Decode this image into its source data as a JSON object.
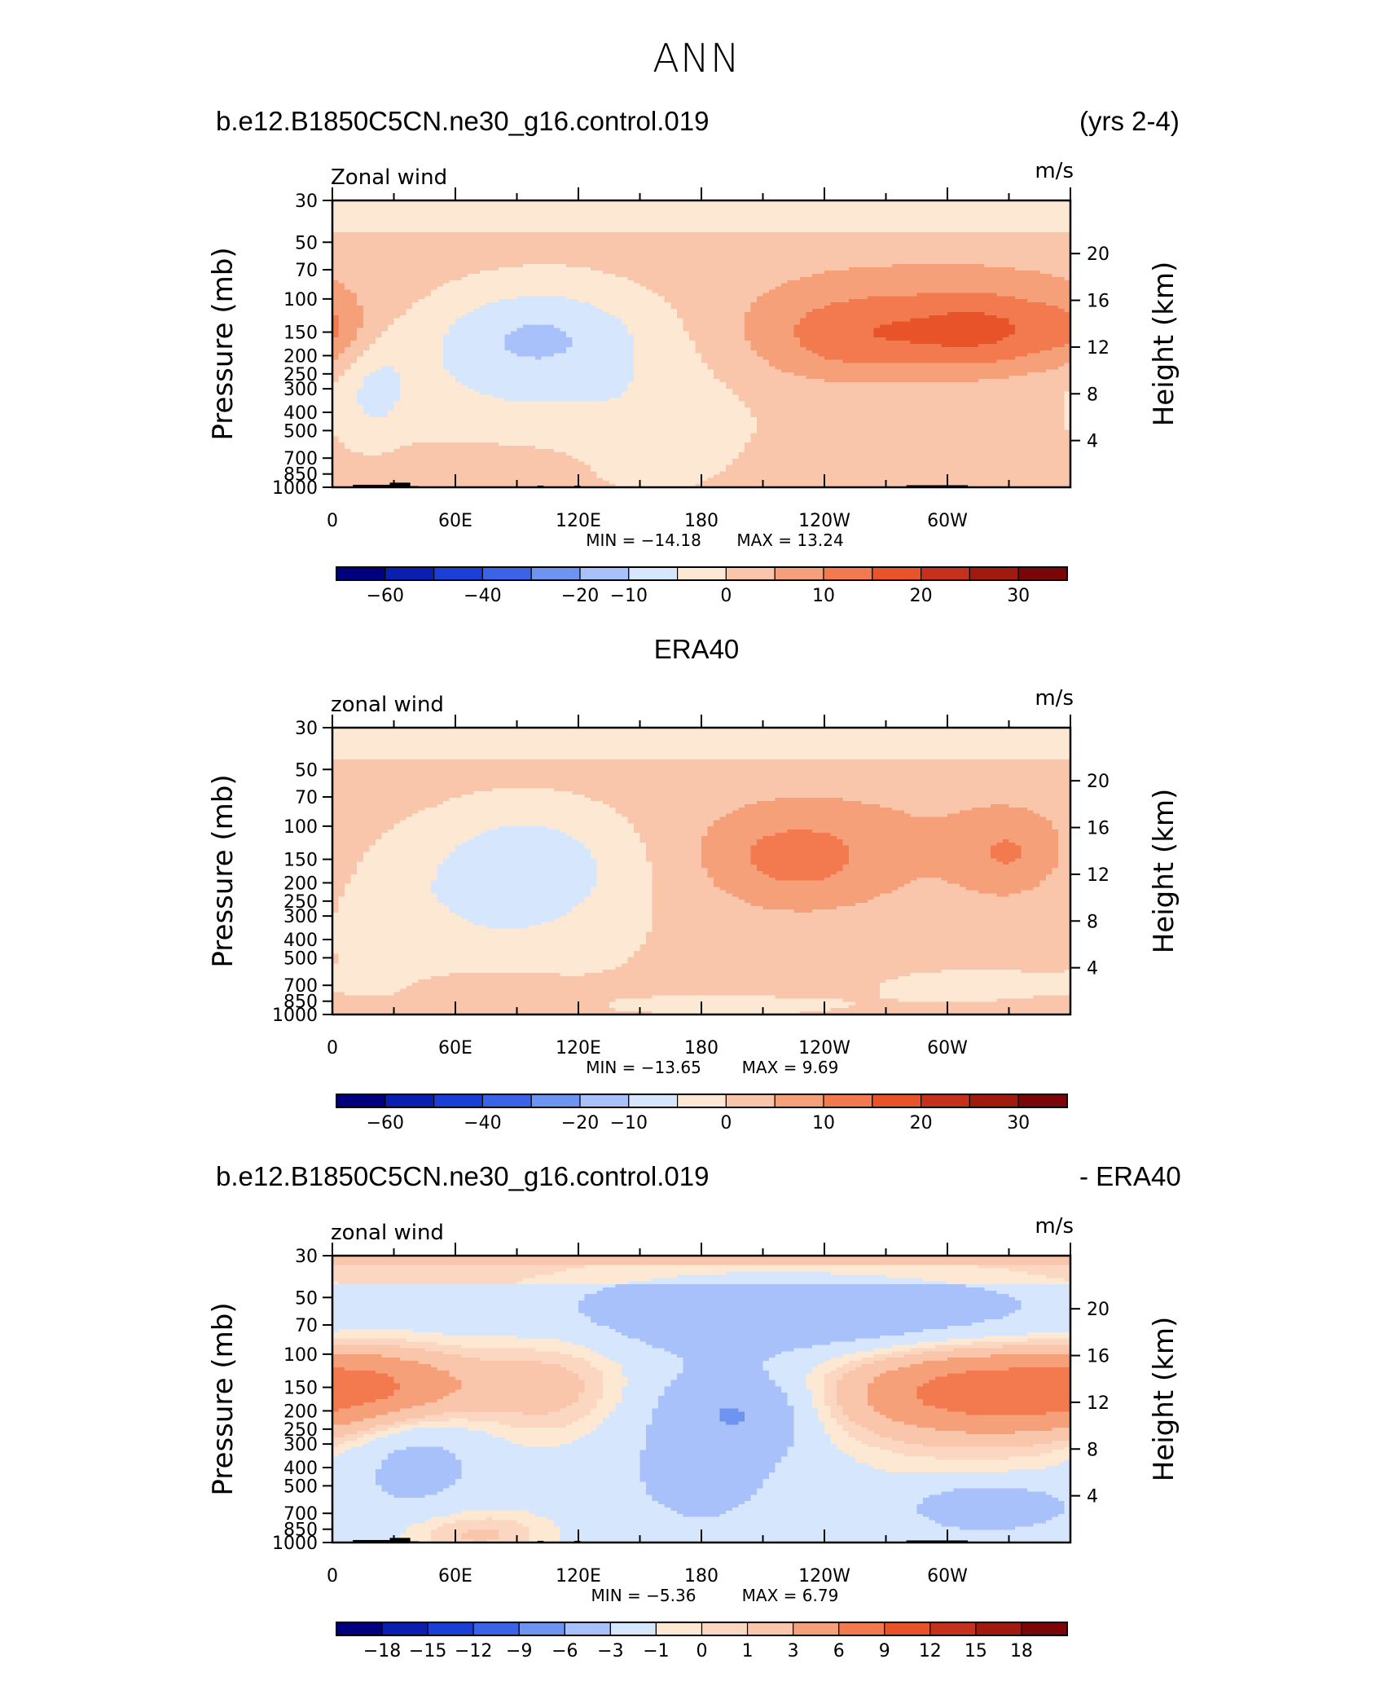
{
  "figure": {
    "title": "ANN"
  },
  "colors": {
    "abs_scale": [
      "#00007f",
      "#0a1fb0",
      "#1a3fd6",
      "#3a63e8",
      "#6e94f2",
      "#a8c1fa",
      "#d6e6fc",
      "#fde8d4",
      "#f9c6ab",
      "#f5a079",
      "#f27a4e",
      "#e8532a",
      "#c6311b",
      "#a01a10",
      "#7a0708"
    ],
    "diff_scale": [
      "#00007f",
      "#0a1fb0",
      "#1a3fd6",
      "#3a63e8",
      "#6e94f2",
      "#a8c1fa",
      "#d6e6fc",
      "#fde8d4",
      "#fbd7c1",
      "#f9c6ab",
      "#f5a079",
      "#f27a4e",
      "#e8532a",
      "#c6311b",
      "#a01a10",
      "#7a0708"
    ]
  },
  "axes": {
    "xtick_labels": [
      "0",
      "60E",
      "120E",
      "180",
      "120W",
      "60W"
    ],
    "ytick_labels": [
      "30",
      "50",
      "70",
      "100",
      "150",
      "200",
      "250",
      "300",
      "400",
      "500",
      "700",
      "850",
      "1000"
    ],
    "right_tick_labels": [
      "20",
      "16",
      "12",
      "8",
      "4"
    ],
    "ylabel": "Pressure (mb)",
    "right_label": "Height (km)"
  },
  "panels": [
    {
      "title_left": "b.e12.B1850C5CN.ne30_g16.control.019",
      "title_center": "",
      "title_right": "(yrs 2-4)",
      "subtitle_left": "Zonal wind",
      "subtitle_right": "m/s",
      "min_label": "MIN = −14.18",
      "max_label": "MAX = 13.24",
      "colorbar_labels": [
        "−60",
        "−40",
        "−20",
        "−10",
        "0",
        "10",
        "20",
        "30"
      ]
    },
    {
      "title_left": "",
      "title_center": "ERA40",
      "title_right": "",
      "subtitle_left": "zonal wind",
      "subtitle_right": "m/s",
      "min_label": "MIN = −13.65",
      "max_label": "MAX = 9.69",
      "colorbar_labels": [
        "−60",
        "−40",
        "−20",
        "−10",
        "0",
        "10",
        "20",
        "30"
      ]
    },
    {
      "title_left": "b.e12.B1850C5CN.ne30_g16.control.019",
      "title_center": "",
      "title_right": "- ERA40",
      "subtitle_left": "zonal wind",
      "subtitle_right": "m/s",
      "min_label": "MIN = −5.36",
      "max_label": "MAX = 6.79",
      "colorbar_labels": [
        "−18",
        "−15",
        "−12",
        "−9",
        "−6",
        "−3",
        "−1",
        "0",
        "1",
        "3",
        "6",
        "9",
        "12",
        "15",
        "18"
      ]
    }
  ],
  "chart_data": [
    {
      "type": "heatmap",
      "title": "b.e12.B1850C5CN.ne30_g16.control.019 (yrs 2-4)",
      "variable": "Zonal wind",
      "units": "m/s",
      "x_range": [
        0,
        360
      ],
      "y_range_mb": [
        1000,
        30
      ],
      "min": -14.18,
      "max": 13.24,
      "contour_levels": [
        -60,
        -50,
        -40,
        -30,
        -20,
        -15,
        -10,
        -5,
        0,
        5,
        10,
        15,
        20,
        25,
        30
      ],
      "features": [
        {
          "lon": 100,
          "p": 150,
          "value": -10
        },
        {
          "lon": 240,
          "p": 150,
          "value": 12
        },
        {
          "lon": 320,
          "p": 150,
          "value": 13
        },
        {
          "lon": 0,
          "p": 40,
          "value": -3
        }
      ]
    },
    {
      "type": "heatmap",
      "title": "ERA40",
      "variable": "zonal wind",
      "units": "m/s",
      "x_range": [
        0,
        360
      ],
      "y_range_mb": [
        1000,
        30
      ],
      "min": -13.65,
      "max": 9.69,
      "contour_levels": [
        -60,
        -50,
        -40,
        -30,
        -20,
        -15,
        -10,
        -5,
        0,
        5,
        10,
        15,
        20,
        25,
        30
      ],
      "features": [
        {
          "lon": 100,
          "p": 150,
          "value": -9
        },
        {
          "lon": 220,
          "p": 150,
          "value": 9
        },
        {
          "lon": 330,
          "p": 130,
          "value": 8
        },
        {
          "lon": 0,
          "p": 40,
          "value": -3
        }
      ]
    },
    {
      "type": "heatmap",
      "title": "b.e12.B1850C5CN.ne30_g16.control.019 - ERA40",
      "variable": "zonal wind",
      "units": "m/s",
      "x_range": [
        0,
        360
      ],
      "y_range_mb": [
        1000,
        30
      ],
      "min": -5.36,
      "max": 6.79,
      "contour_levels": [
        -21,
        -18,
        -15,
        -12,
        -9,
        -6,
        -3,
        -1,
        0,
        1,
        3,
        6,
        9,
        12,
        15,
        18
      ],
      "features": [
        {
          "lon": 30,
          "p": 150,
          "value": 6
        },
        {
          "lon": 310,
          "p": 150,
          "value": 6.5
        },
        {
          "lon": 200,
          "p": 200,
          "value": -5
        },
        {
          "lon": 200,
          "p": 60,
          "value": -4
        }
      ]
    }
  ]
}
